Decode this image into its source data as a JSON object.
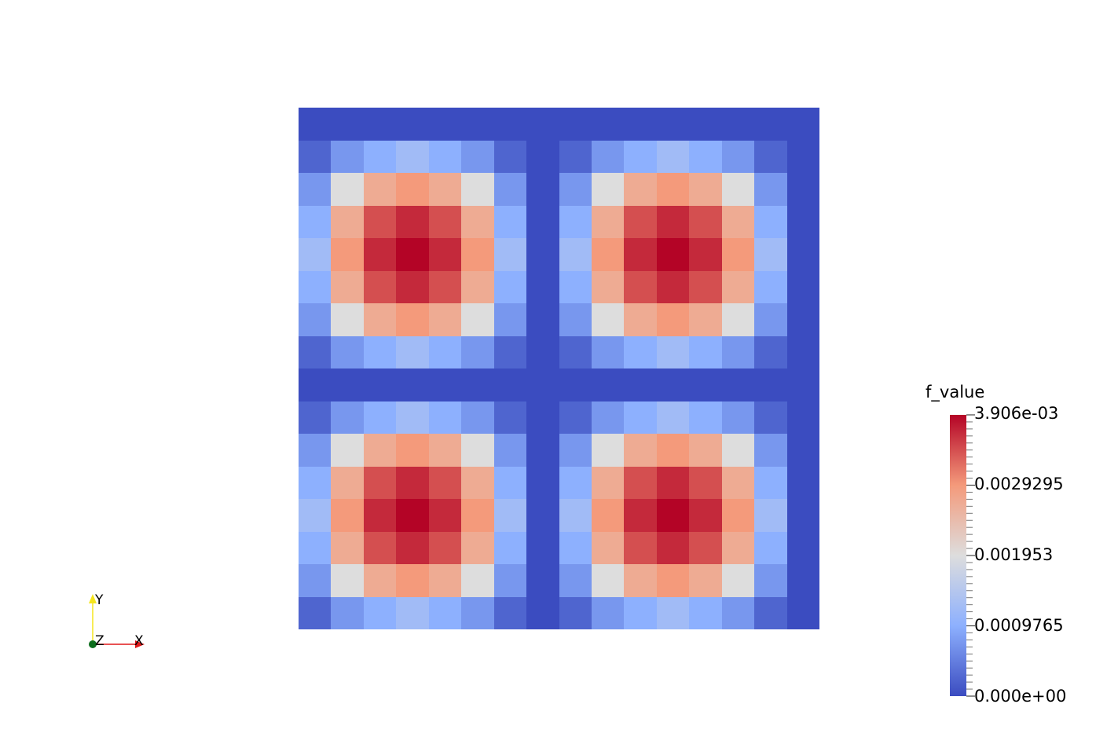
{
  "chart_data": {
    "type": "heatmap",
    "title": "",
    "xlabel": "",
    "ylabel": "",
    "colormap": [
      "#3b4cc0",
      "#dddddd",
      "#b40426"
    ],
    "value_range": [
      0.0,
      0.003906
    ],
    "colorbar": {
      "title": "f_value",
      "tick_labels": [
        "3.906e-03",
        "0.0029295",
        "0.001953",
        "0.0009765",
        "0.000e+00"
      ],
      "tick_values": [
        0.003906,
        0.0029295,
        0.001953,
        0.0009765,
        0.0
      ]
    },
    "grid_rows": 16,
    "grid_cols": 16,
    "values": [
      [
        0,
        0,
        0,
        0,
        0,
        0,
        0,
        0,
        0,
        0,
        0,
        0,
        0,
        0,
        0,
        0
      ],
      [
        0.000244,
        0.000732,
        0.000977,
        0.001221,
        0.000977,
        0.000732,
        0.000244,
        0,
        0.000244,
        0.000732,
        0.000977,
        0.001221,
        0.000977,
        0.000732,
        0.000244,
        0
      ],
      [
        0.000732,
        0.001953,
        0.002686,
        0.00293,
        0.002686,
        0.001953,
        0.000732,
        0,
        0.000732,
        0.001953,
        0.002686,
        0.00293,
        0.002686,
        0.001953,
        0.000732,
        0
      ],
      [
        0.000977,
        0.002686,
        0.003418,
        0.003662,
        0.003418,
        0.002686,
        0.000977,
        0,
        0.000977,
        0.002686,
        0.003418,
        0.003662,
        0.003418,
        0.002686,
        0.000977,
        0
      ],
      [
        0.001221,
        0.00293,
        0.003662,
        0.003906,
        0.003662,
        0.00293,
        0.001221,
        0,
        0.001221,
        0.00293,
        0.003662,
        0.003906,
        0.003662,
        0.00293,
        0.001221,
        0
      ],
      [
        0.000977,
        0.002686,
        0.003418,
        0.003662,
        0.003418,
        0.002686,
        0.000977,
        0,
        0.000977,
        0.002686,
        0.003418,
        0.003662,
        0.003418,
        0.002686,
        0.000977,
        0
      ],
      [
        0.000732,
        0.001953,
        0.002686,
        0.00293,
        0.002686,
        0.001953,
        0.000732,
        0,
        0.000732,
        0.001953,
        0.002686,
        0.00293,
        0.002686,
        0.001953,
        0.000732,
        0
      ],
      [
        0.000244,
        0.000732,
        0.000977,
        0.001221,
        0.000977,
        0.000732,
        0.000244,
        0,
        0.000244,
        0.000732,
        0.000977,
        0.001221,
        0.000977,
        0.000732,
        0.000244,
        0
      ],
      [
        0,
        0,
        0,
        0,
        0,
        0,
        0,
        0,
        0,
        0,
        0,
        0,
        0,
        0,
        0,
        0
      ],
      [
        0.000244,
        0.000732,
        0.000977,
        0.001221,
        0.000977,
        0.000732,
        0.000244,
        0,
        0.000244,
        0.000732,
        0.000977,
        0.001221,
        0.000977,
        0.000732,
        0.000244,
        0
      ],
      [
        0.000732,
        0.001953,
        0.002686,
        0.00293,
        0.002686,
        0.001953,
        0.000732,
        0,
        0.000732,
        0.001953,
        0.002686,
        0.00293,
        0.002686,
        0.001953,
        0.000732,
        0
      ],
      [
        0.000977,
        0.002686,
        0.003418,
        0.003662,
        0.003418,
        0.002686,
        0.000977,
        0,
        0.000977,
        0.002686,
        0.003418,
        0.003662,
        0.003418,
        0.002686,
        0.000977,
        0
      ],
      [
        0.001221,
        0.00293,
        0.003662,
        0.003906,
        0.003662,
        0.00293,
        0.001221,
        0,
        0.001221,
        0.00293,
        0.003662,
        0.003906,
        0.003662,
        0.00293,
        0.001221,
        0
      ],
      [
        0.000977,
        0.002686,
        0.003418,
        0.003662,
        0.003418,
        0.002686,
        0.000977,
        0,
        0.000977,
        0.002686,
        0.003418,
        0.003662,
        0.003418,
        0.002686,
        0.000977,
        0
      ],
      [
        0.000732,
        0.001953,
        0.002686,
        0.00293,
        0.002686,
        0.001953,
        0.000732,
        0,
        0.000732,
        0.001953,
        0.002686,
        0.00293,
        0.002686,
        0.001953,
        0.000732,
        0
      ],
      [
        0.000244,
        0.000732,
        0.000977,
        0.001221,
        0.000977,
        0.000732,
        0.000244,
        0,
        0.000244,
        0.000732,
        0.000977,
        0.001221,
        0.000977,
        0.000732,
        0.000244,
        0
      ]
    ]
  },
  "orientation_axes": {
    "x_label": "X",
    "y_label": "Y",
    "z_label": "Z",
    "x_color": "#e0191a",
    "y_color": "#f5e51e",
    "z_color": "#0d6e1e"
  }
}
